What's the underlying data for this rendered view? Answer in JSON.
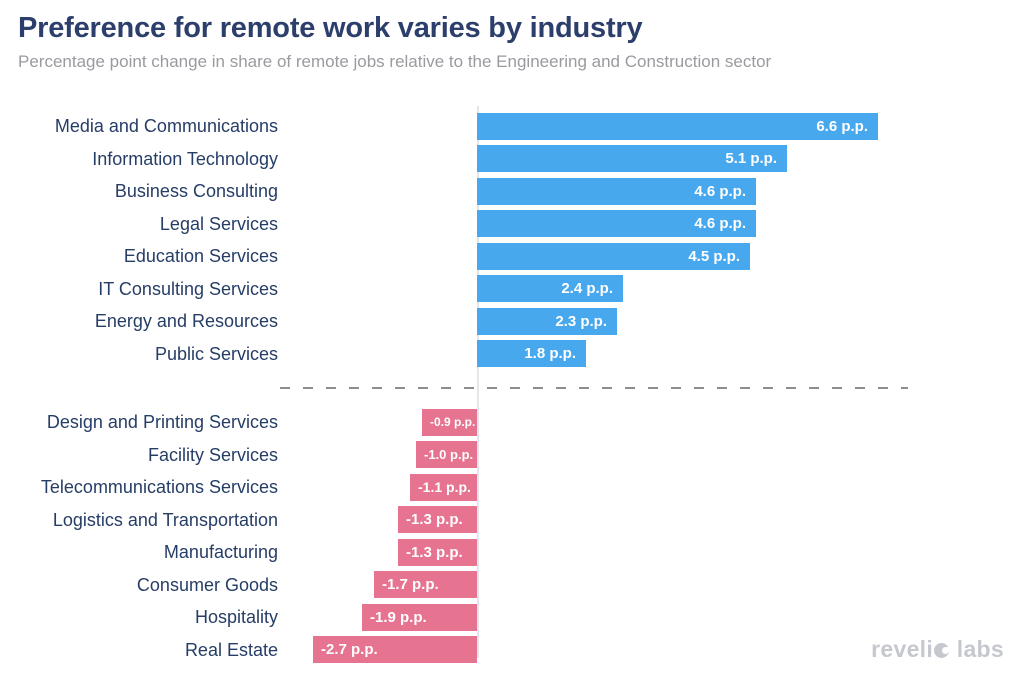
{
  "header": {
    "title": "Preference for remote work varies by industry",
    "subtitle": "Percentage point change in share of remote jobs relative to the Engineering and Construction sector"
  },
  "chart_data": {
    "type": "bar",
    "orientation": "horizontal",
    "unit": "p.p.",
    "categories": [
      "Media and Communications",
      "Information Technology",
      "Business Consulting",
      "Legal Services",
      "Education Services",
      "IT Consulting Services",
      "Energy and Resources",
      "Public Services",
      "Design and Printing Services",
      "Facility Services",
      "Telecommunications Services",
      "Logistics and Transportation",
      "Manufacturing",
      "Consumer Goods",
      "Hospitality",
      "Real Estate"
    ],
    "values": [
      6.6,
      5.1,
      4.6,
      4.6,
      4.5,
      2.4,
      2.3,
      1.8,
      -0.9,
      -1.0,
      -1.1,
      -1.3,
      -1.3,
      -1.7,
      -1.9,
      -2.7
    ],
    "value_labels": [
      "6.6 p.p.",
      "5.1 p.p.",
      "4.6 p.p.",
      "4.6 p.p.",
      "4.5 p.p.",
      "2.4 p.p.",
      "2.3 p.p.",
      "1.8 p.p.",
      "-0.9 p.p.",
      "-1.0 p.p.",
      "-1.1 p.p.",
      "-1.3 p.p.",
      "-1.3 p.p.",
      "-1.7 p.p.",
      "-1.9 p.p.",
      "-2.7 p.p."
    ],
    "xlim": [
      -2.7,
      6.6
    ],
    "positive_color": "#47a8ee",
    "negative_color": "#e6738f",
    "label_color": "#263d66",
    "value_text_color": "#ffffff",
    "separator": "dashed horizontal line between positive and negative groups",
    "grid": "off",
    "legend": "none"
  },
  "footer": {
    "logo": {
      "part1": "reveli",
      "o_icon": "droplet-circle-icon",
      "part2": "labs",
      "full_text": "revelio labs"
    }
  }
}
